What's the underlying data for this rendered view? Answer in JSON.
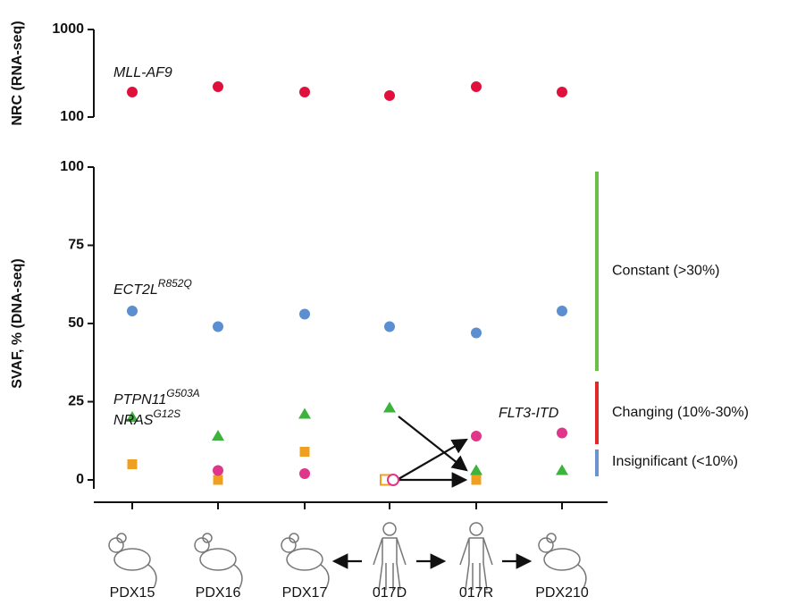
{
  "chart_data": [
    {
      "type": "dot",
      "ylabel": "NRC (RNA-seq)",
      "log_scale": true,
      "ylim": [
        100,
        1000
      ],
      "yticks": [
        100,
        1000
      ],
      "series": [
        {
          "name": "MLL-AF9",
          "color": "#e0103c",
          "marker": "circle",
          "values": [
            193,
            222,
            193,
            176,
            222,
            193
          ]
        }
      ]
    },
    {
      "type": "dot",
      "ylabel": "SVAF, % (DNA-seq)",
      "categories": [
        "PDX15",
        "PDX16",
        "PDX17",
        "017D",
        "017R",
        "PDX210"
      ],
      "ylim": [
        0,
        100
      ],
      "yticks": [
        0,
        25,
        50,
        75,
        100
      ],
      "series": [
        {
          "name": "ECT2L",
          "superscript": "R852Q",
          "color": "#5b8fd0",
          "marker": "circle",
          "values": [
            54,
            49,
            53,
            49,
            47,
            54
          ]
        },
        {
          "name": "PTPN11",
          "superscript": "G503A",
          "color": "#3db33d",
          "marker": "triangle",
          "values": [
            20,
            14,
            21,
            23,
            3,
            3
          ]
        },
        {
          "name": "NRAS",
          "superscript": "G12S",
          "color": "#f0a020",
          "marker": "square",
          "values": [
            5,
            0,
            9,
            0,
            0,
            null
          ],
          "open": [
            false,
            false,
            false,
            true,
            false,
            false
          ]
        },
        {
          "name": "FLT3-ITD",
          "color": "#e0358a",
          "marker": "circle",
          "values": [
            null,
            3,
            2,
            0,
            14,
            15
          ],
          "open": [
            false,
            false,
            false,
            true,
            false,
            false
          ]
        }
      ],
      "ranges": [
        {
          "label": "Constant (>30%)",
          "color": "#6cc04a"
        },
        {
          "label": "Changing (10%-30%)",
          "color": "#e02a2a"
        },
        {
          "label": "Insignificant (<10%)",
          "color": "#6a93d0"
        }
      ]
    }
  ]
}
